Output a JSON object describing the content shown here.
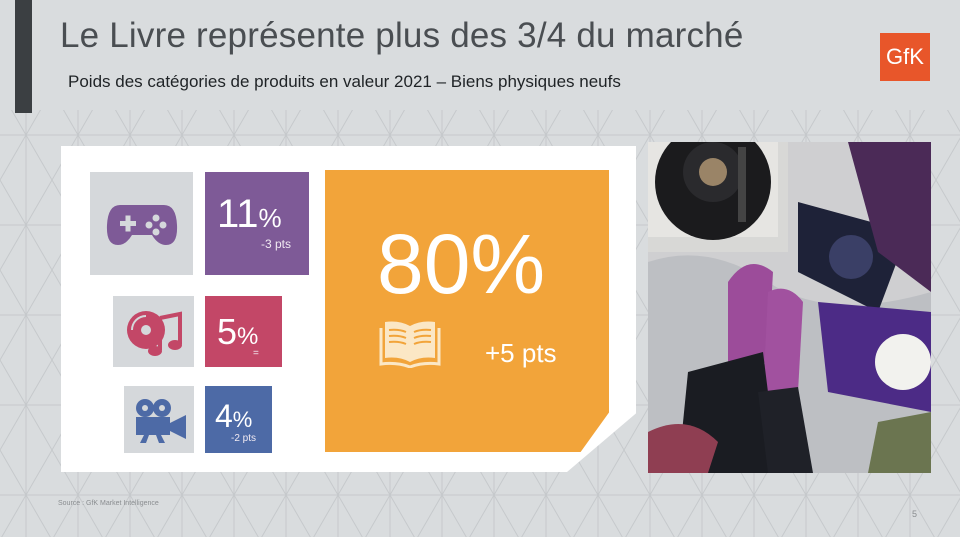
{
  "slide": {
    "title": "Le Livre représente plus des 3/4 du marché",
    "subtitle": "Poids des catégories de produits en valeur 2021 – Biens physiques neufs",
    "logo_text": "GfK",
    "source": "Source : GfK Market Intelligence",
    "page_number": "5"
  },
  "categories": {
    "video_games": {
      "icon": "gamepad-icon",
      "value": "11",
      "unit": "%",
      "change": "-3 pts",
      "color": "#7e5a97"
    },
    "music": {
      "icon": "music-disc-icon",
      "value": "5",
      "unit": "%",
      "change": "=",
      "color": "#c34767"
    },
    "video": {
      "icon": "video-camera-icon",
      "value": "4",
      "unit": "%",
      "change": "-2 pts",
      "color": "#4d6aa6"
    },
    "books": {
      "icon": "open-book-icon",
      "value": "80%",
      "change": "+5 pts",
      "color": "#f2a43a"
    }
  },
  "colors": {
    "icon_bg": "#d5d8db",
    "icon_fg_games": "#7e5a97",
    "icon_fg_music": "#c34767",
    "icon_fg_video": "#4d6aa6",
    "gfk_orange": "#e8562a"
  }
}
